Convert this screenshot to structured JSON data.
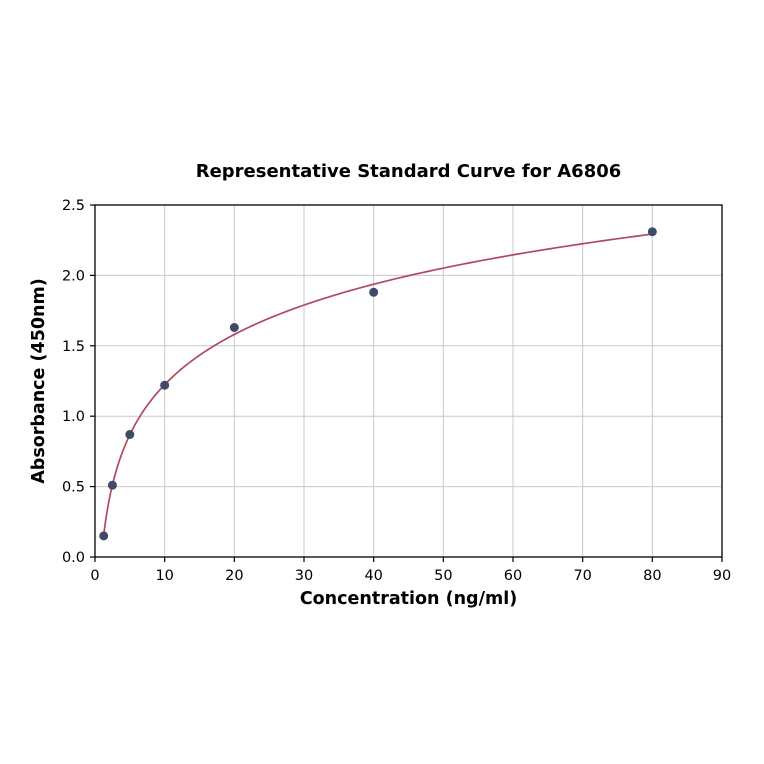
{
  "chart_data": {
    "type": "scatter",
    "title": "Representative Standard Curve for A6806",
    "xlabel": "Concentration (ng/ml)",
    "ylabel": "Absorbance (450nm)",
    "xlim": [
      0,
      90
    ],
    "ylim": [
      0,
      2.5
    ],
    "x_ticks": [
      0,
      10,
      20,
      30,
      40,
      50,
      60,
      70,
      80,
      90
    ],
    "y_ticks": [
      0.0,
      0.5,
      1.0,
      1.5,
      2.0,
      2.5
    ],
    "grid": true,
    "legend_position": "none",
    "points": {
      "x": [
        1.25,
        2.5,
        5,
        10,
        20,
        40,
        80
      ],
      "y": [
        0.15,
        0.51,
        0.87,
        1.22,
        1.63,
        1.88,
        2.31
      ]
    },
    "fit_curve": {
      "type": "logarithmic"
    },
    "colors": {
      "marker": "#3d4a68",
      "curve": "#b04a60",
      "grid": "#c8c8c8",
      "axis": "#000000",
      "background": "#ffffff"
    }
  }
}
